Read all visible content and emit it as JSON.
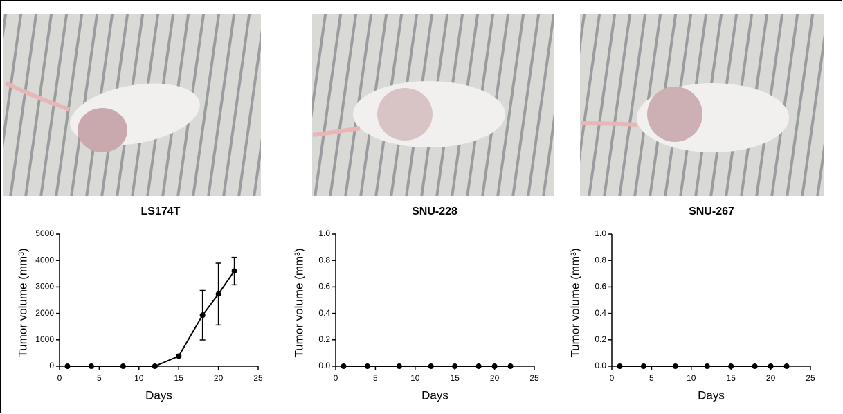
{
  "chart_data": [
    {
      "type": "line",
      "title": "LS174T",
      "xlabel": "Days",
      "ylabel": "Tumor volume (mm³)",
      "x": [
        1,
        4,
        8,
        12,
        15,
        18,
        20,
        22
      ],
      "values": [
        0,
        0,
        0,
        0,
        380,
        1930,
        2730,
        3600
      ],
      "errors": [
        0,
        0,
        0,
        0,
        30,
        935,
        1170,
        520
      ],
      "color": "#000000",
      "xlim": [
        0,
        25
      ],
      "xticks": [
        0,
        5,
        10,
        15,
        20,
        25
      ],
      "ylim": [
        0,
        5000
      ],
      "yticks": [
        0,
        1000,
        2000,
        3000,
        4000,
        5000
      ]
    },
    {
      "type": "line",
      "title": "SNU-228",
      "xlabel": "Days",
      "ylabel": "Tumor volume (mm³)",
      "x": [
        1,
        4,
        8,
        12,
        15,
        18,
        20,
        22
      ],
      "values": [
        0,
        0,
        0,
        0,
        0,
        0,
        0,
        0
      ],
      "color": "#000000",
      "xlim": [
        0,
        25
      ],
      "xticks": [
        0,
        5,
        10,
        15,
        20,
        25
      ],
      "ylim": [
        0,
        1
      ],
      "yticks": [
        {
          "value": 0,
          "label": "0.0"
        },
        {
          "value": 0.2,
          "label": "0.2"
        },
        {
          "value": 0.4,
          "label": "0.4"
        },
        {
          "value": 0.6,
          "label": "0.6"
        },
        {
          "value": 0.8,
          "label": "0.8"
        },
        {
          "value": 1,
          "label": "1.0"
        }
      ]
    },
    {
      "type": "line",
      "title": "SNU-267",
      "xlabel": "Days",
      "ylabel": "Tumor volume (mm³)",
      "x": [
        1,
        4,
        8,
        12,
        15,
        18,
        20,
        22
      ],
      "values": [
        0,
        0,
        0,
        0,
        0,
        0,
        0,
        0
      ],
      "color": "#000000",
      "xlim": [
        0,
        25
      ],
      "xticks": [
        0,
        5,
        10,
        15,
        20,
        25
      ],
      "ylim": [
        0,
        1
      ],
      "yticks": [
        {
          "value": 0,
          "label": "0.0"
        },
        {
          "value": 0.2,
          "label": "0.2"
        },
        {
          "value": 0.4,
          "label": "0.4"
        },
        {
          "value": 0.6,
          "label": "0.6"
        },
        {
          "value": 0.8,
          "label": "0.8"
        },
        {
          "value": 1,
          "label": "1.0"
        }
      ]
    }
  ]
}
